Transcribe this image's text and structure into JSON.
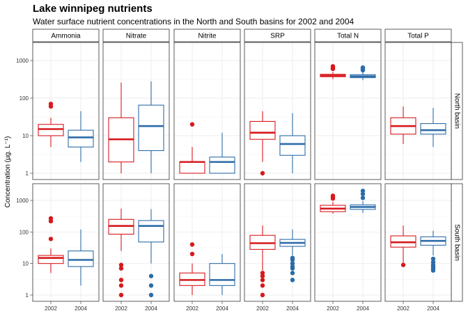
{
  "title": "Lake winnipeg nutrients",
  "subtitle": "Water surface nutrient concentrations in the North and South basins for 2002 and 2004",
  "chart_data": {
    "type": "boxplot",
    "y_scale": "log10",
    "y_ticks": [
      1,
      10,
      100,
      1000
    ],
    "y_tick_labels": [
      "1",
      "10",
      "100",
      "1000"
    ],
    "y_label": "Concentration (µg. L⁻¹)",
    "x_categories": [
      "2002",
      "2004"
    ],
    "facet_columns": [
      "Ammonia",
      "Nitrate",
      "Nitrite",
      "SRP",
      "Total N",
      "Total P"
    ],
    "facet_rows": [
      "North basin",
      "South basin"
    ],
    "colors": {
      "2002": "#d7191c",
      "2004": "#2c6ba8"
    },
    "grid": true,
    "legend": "none",
    "panels": {
      "North basin": {
        "Ammonia": {
          "2002": {
            "min": 5,
            "q1": 10,
            "median": 15,
            "q3": 20,
            "max": 30,
            "outliers": [
              60,
              70
            ]
          },
          "2004": {
            "min": 2,
            "q1": 5,
            "median": 9,
            "q3": 14,
            "max": 45,
            "outliers": []
          }
        },
        "Nitrate": {
          "2002": {
            "min": 1,
            "q1": 2,
            "median": 8,
            "q3": 30,
            "max": 260,
            "outliers": []
          },
          "2004": {
            "min": 1,
            "q1": 4,
            "median": 18,
            "q3": 65,
            "max": 280,
            "outliers": []
          }
        },
        "Nitrite": {
          "2002": {
            "min": 1,
            "q1": 1,
            "median": 2,
            "q3": 2,
            "max": 5,
            "outliers": [
              20
            ]
          },
          "2004": {
            "min": 1,
            "q1": 1,
            "median": 2,
            "q3": 2.7,
            "max": 12,
            "outliers": []
          }
        },
        "SRP": {
          "2002": {
            "min": 2,
            "q1": 8,
            "median": 12,
            "q3": 24,
            "max": 45,
            "outliers": [
              1
            ]
          },
          "2004": {
            "min": 1,
            "q1": 3,
            "median": 6,
            "q3": 10,
            "max": 40,
            "outliers": []
          }
        },
        "Total N": {
          "2002": {
            "min": 320,
            "q1": 370,
            "median": 400,
            "q3": 430,
            "max": 500,
            "outliers": [
              600,
              650,
              700
            ]
          },
          "2004": {
            "min": 300,
            "q1": 350,
            "median": 380,
            "q3": 420,
            "max": 480,
            "outliers": [
              550,
              600,
              650
            ]
          }
        },
        "Total P": {
          "2002": {
            "min": 6,
            "q1": 11,
            "median": 18,
            "q3": 30,
            "max": 60,
            "outliers": []
          },
          "2004": {
            "min": 5,
            "q1": 11,
            "median": 14,
            "q3": 21,
            "max": 55,
            "outliers": []
          }
        }
      },
      "South basin": {
        "Ammonia": {
          "2002": {
            "min": 5,
            "q1": 10,
            "median": 15,
            "q3": 18,
            "max": 30,
            "outliers": [
              60,
              220,
              270
            ]
          },
          "2004": {
            "min": 2,
            "q1": 8,
            "median": 13,
            "q3": 25,
            "max": 120,
            "outliers": []
          }
        },
        "Nitrate": {
          "2002": {
            "min": 25,
            "q1": 85,
            "median": 155,
            "q3": 250,
            "max": 550,
            "outliers": [
              9,
              7,
              3,
              2,
              1
            ]
          },
          "2004": {
            "min": 10,
            "q1": 48,
            "median": 155,
            "q3": 230,
            "max": 530,
            "outliers": [
              4,
              2,
              1
            ]
          }
        },
        "Nitrite": {
          "2002": {
            "min": 1,
            "q1": 2,
            "median": 3,
            "q3": 5,
            "max": 10,
            "outliers": [
              20,
              40
            ]
          },
          "2004": {
            "min": 1,
            "q1": 2,
            "median": 3,
            "q3": 10,
            "max": 20,
            "outliers": []
          }
        },
        "SRP": {
          "2002": {
            "min": 6,
            "q1": 28,
            "median": 44,
            "q3": 78,
            "max": 160,
            "outliers": [
              5,
              4,
              3,
              2,
              1
            ]
          },
          "2004": {
            "min": 18,
            "q1": 35,
            "median": 45,
            "q3": 58,
            "max": 120,
            "outliers": [
              15,
              13,
              10,
              8,
              7,
              5,
              3
            ]
          }
        },
        "Total N": {
          "2002": {
            "min": 380,
            "q1": 440,
            "median": 550,
            "q3": 700,
            "max": 900,
            "outliers": [
              1150,
              1300,
              1400
            ]
          },
          "2004": {
            "min": 400,
            "q1": 520,
            "median": 620,
            "q3": 720,
            "max": 950,
            "outliers": [
              1200,
              1600,
              2000
            ]
          }
        },
        "Total P": {
          "2002": {
            "min": 10,
            "q1": 33,
            "median": 47,
            "q3": 75,
            "max": 160,
            "outliers": [
              9
            ]
          },
          "2004": {
            "min": 18,
            "q1": 38,
            "median": 52,
            "q3": 70,
            "max": 110,
            "outliers": [
              14,
              11,
              9,
              8,
              7,
              6
            ]
          }
        }
      }
    }
  }
}
